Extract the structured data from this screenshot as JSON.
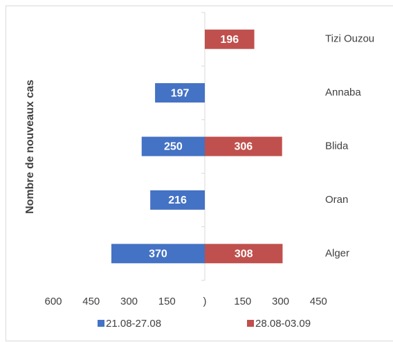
{
  "chart_data": {
    "type": "butterfly-bar",
    "y_label": "Nombre de nouveaux cas",
    "categories": [
      "Tizi Ouzou",
      "Annaba",
      "Blida",
      "Oran",
      "Alger"
    ],
    "series": [
      {
        "name": "21.08-27.08",
        "color": "#4472c4",
        "values": [
          null,
          -197,
          -250,
          -216,
          -370
        ],
        "value_labels": [
          null,
          "197",
          "250",
          "216",
          "370"
        ]
      },
      {
        "name": "28.08-03.09",
        "color": "#c0504d",
        "values": [
          196,
          null,
          306,
          null,
          308
        ]
      }
    ],
    "xlim": [
      -600,
      450
    ],
    "xticks": [
      {
        "value": -600,
        "label": "600"
      },
      {
        "value": -450,
        "label": "450"
      },
      {
        "value": -300,
        "label": "300"
      },
      {
        "value": -150,
        "label": "150"
      },
      {
        "value": 0,
        "label": ")"
      },
      150,
      300,
      450
    ],
    "legend": "bottom"
  }
}
